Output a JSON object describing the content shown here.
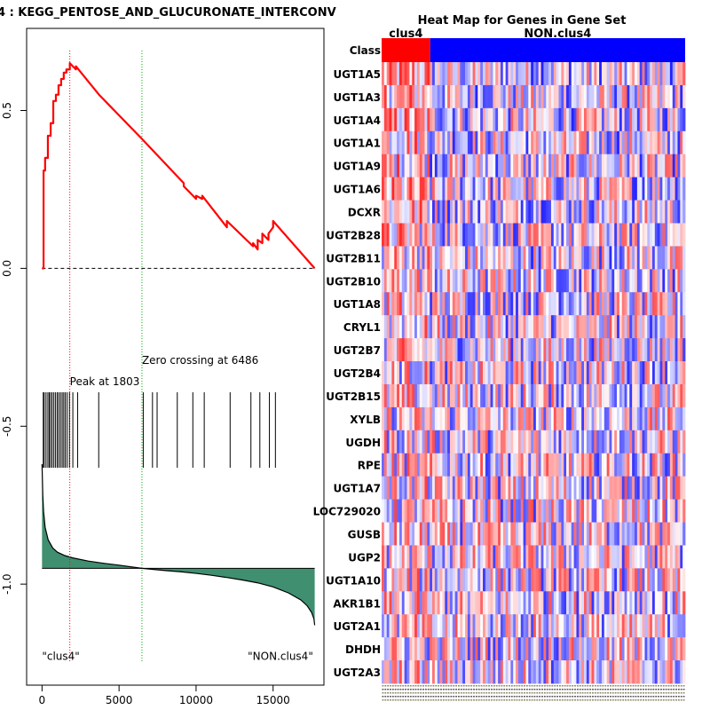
{
  "chart_data": [
    {
      "type": "line",
      "title": "4 : KEGG_PENTOSE_AND_GLUCURONATE_INTERCONV",
      "xlabel": "",
      "ylabel": "",
      "xlim": [
        -1000,
        18300
      ],
      "ylim": [
        -1.32,
        0.76
      ],
      "x_ticks": [
        0,
        5000,
        10000,
        15000
      ],
      "y_ticks": [
        0.5,
        0.0,
        -0.5,
        -1.0
      ],
      "x_tick_labels": [
        "0",
        "5000",
        "10000",
        "15000"
      ],
      "y_tick_labels": [
        "0.5",
        "0.0",
        "-0.5",
        "-1.0"
      ],
      "colors": {
        "es_line": "#ff0000",
        "ranked_fill": "#3f8f70",
        "peak_line": "#ff0000",
        "zero_line": "#00aa00"
      },
      "series": [
        {
          "name": "enrichment score",
          "x": [
            0,
            100,
            100,
            200,
            200,
            380,
            380,
            560,
            560,
            730,
            730,
            900,
            900,
            1070,
            1070,
            1240,
            1240,
            1410,
            1410,
            1580,
            1580,
            1803,
            1803,
            2200,
            2200,
            3700,
            6486,
            9200,
            9200,
            10000,
            10000,
            10400,
            10400,
            12000,
            12000,
            13700,
            13700,
            14000,
            14000,
            14300,
            14300,
            14700,
            14700,
            15000,
            15000,
            17700
          ],
          "y": [
            0.0,
            0.0,
            0.31,
            0.31,
            0.35,
            0.35,
            0.42,
            0.42,
            0.46,
            0.46,
            0.53,
            0.53,
            0.55,
            0.55,
            0.58,
            0.58,
            0.6,
            0.6,
            0.62,
            0.62,
            0.63,
            0.63,
            0.65,
            0.63,
            0.64,
            0.55,
            0.41,
            0.27,
            0.26,
            0.22,
            0.23,
            0.22,
            0.23,
            0.13,
            0.15,
            0.07,
            0.08,
            0.06,
            0.09,
            0.08,
            0.11,
            0.09,
            0.11,
            0.13,
            0.15,
            0.0
          ]
        }
      ],
      "hit_positions": [
        80,
        140,
        260,
        380,
        470,
        560,
        660,
        770,
        880,
        990,
        1090,
        1200,
        1310,
        1410,
        1510,
        1630,
        1780,
        2000,
        2310,
        3680,
        6570,
        7170,
        7470,
        8780,
        9790,
        10530,
        12210,
        13560,
        14140,
        14760,
        15150
      ],
      "ranked_metric_curve": {
        "x": [
          0,
          20,
          50,
          100,
          200,
          400,
          700,
          1000,
          1500,
          2000,
          3000,
          4000,
          5000,
          6486,
          8000,
          9000,
          10000,
          11000,
          12000,
          13000,
          14000,
          15000,
          16000,
          16800,
          17200,
          17500,
          17650,
          17700
        ],
        "y": [
          -0.62,
          -0.66,
          -0.72,
          -0.77,
          -0.82,
          -0.86,
          -0.886,
          -0.899,
          -0.91,
          -0.917,
          -0.927,
          -0.934,
          -0.94,
          -0.95,
          -0.957,
          -0.961,
          -0.966,
          -0.972,
          -0.979,
          -0.987,
          -0.996,
          -1.009,
          -1.028,
          -1.05,
          -1.068,
          -1.09,
          -1.11,
          -1.13
        ],
        "baseline": -0.95
      },
      "zero_dashed_y": 0.0,
      "peak": {
        "x": 1803,
        "label": "Peak at 1803"
      },
      "zero_crossing": {
        "x": 6486,
        "label": "Zero crossing at 6486"
      },
      "annotations": [
        {
          "text": "\"clus4\"",
          "x": 0,
          "y": -1.24
        },
        {
          "text": "\"NON.clus4\"",
          "x": 17600,
          "y": -1.24
        }
      ]
    },
    {
      "type": "heatmap",
      "title": "Heat Map for Genes in Gene Set",
      "class_row_label": "Class",
      "classes": [
        {
          "name": "clus4",
          "fraction": 0.16,
          "color": "#ff0000"
        },
        {
          "name": "NON.clus4",
          "fraction": 0.84,
          "color": "#0000ff"
        }
      ],
      "genes": [
        "UGT1A5",
        "UGT1A3",
        "UGT1A4",
        "UGT1A1",
        "UGT1A9",
        "UGT1A6",
        "DCXR",
        "UGT2B28",
        "UGT2B11",
        "UGT2B10",
        "UGT1A8",
        "CRYL1",
        "UGT2B7",
        "UGT2B4",
        "UGT2B15",
        "XYLB",
        "UGDH",
        "RPE",
        "UGT1A7",
        "LOC729020",
        "GUSB",
        "UGP2",
        "UGT1A10",
        "AKR1B1",
        "UGT2A1",
        "DHDH",
        "UGT2A3"
      ],
      "color_scale": {
        "low": "#0000ff",
        "mid": "#ffffff",
        "high": "#ff0000"
      },
      "n_samples": 120
    }
  ]
}
